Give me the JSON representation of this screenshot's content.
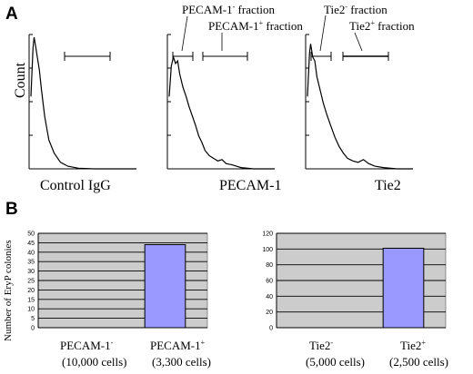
{
  "panels": {
    "a": "A",
    "b": "B"
  },
  "colors": {
    "plot_bg": "#cccccc",
    "bar_fill": "#9999ff",
    "line": "#000000"
  },
  "chart_data": [
    {
      "type": "line",
      "panel": "A",
      "ylabel": "Count",
      "xlabel": "Control IgG",
      "gates": [],
      "histogram": [
        [
          0,
          0.55
        ],
        [
          0.02,
          0.92
        ],
        [
          0.03,
          1.0
        ],
        [
          0.045,
          0.93
        ],
        [
          0.06,
          0.85
        ],
        [
          0.08,
          0.75
        ],
        [
          0.1,
          0.6
        ],
        [
          0.13,
          0.4
        ],
        [
          0.17,
          0.22
        ],
        [
          0.22,
          0.12
        ],
        [
          0.28,
          0.05
        ],
        [
          0.35,
          0.02
        ],
        [
          0.45,
          0.005
        ],
        [
          0.6,
          0
        ],
        [
          1,
          0
        ]
      ],
      "marker_bar": "unlabeled gate"
    },
    {
      "type": "line",
      "panel": "A",
      "xlabel": "PECAM-1",
      "gates": [
        {
          "base": "PECAM-1",
          "sup": "-",
          "suffix": " fraction"
        },
        {
          "base": "PECAM-1",
          "sup": "+",
          "suffix": " fraction"
        }
      ],
      "histogram": [
        [
          0,
          0.55
        ],
        [
          0.02,
          0.78
        ],
        [
          0.04,
          0.85
        ],
        [
          0.06,
          0.8
        ],
        [
          0.08,
          0.82
        ],
        [
          0.1,
          0.72
        ],
        [
          0.13,
          0.62
        ],
        [
          0.16,
          0.55
        ],
        [
          0.19,
          0.47
        ],
        [
          0.22,
          0.4
        ],
        [
          0.25,
          0.33
        ],
        [
          0.28,
          0.25
        ],
        [
          0.31,
          0.2
        ],
        [
          0.34,
          0.14
        ],
        [
          0.38,
          0.1
        ],
        [
          0.42,
          0.08
        ],
        [
          0.46,
          0.06
        ],
        [
          0.5,
          0.07
        ],
        [
          0.54,
          0.04
        ],
        [
          0.6,
          0.03
        ],
        [
          0.68,
          0.01
        ],
        [
          0.8,
          0
        ],
        [
          1,
          0
        ]
      ]
    },
    {
      "type": "line",
      "panel": "A",
      "xlabel": "Tie2",
      "gates": [
        {
          "base": "Tie2",
          "sup": "-",
          "suffix": " fraction"
        },
        {
          "base": "Tie2",
          "sup": "+",
          "suffix": " fraction"
        }
      ],
      "histogram": [
        [
          0,
          0.55
        ],
        [
          0.02,
          0.88
        ],
        [
          0.03,
          0.95
        ],
        [
          0.05,
          0.85
        ],
        [
          0.07,
          0.82
        ],
        [
          0.09,
          0.7
        ],
        [
          0.12,
          0.6
        ],
        [
          0.15,
          0.5
        ],
        [
          0.18,
          0.42
        ],
        [
          0.22,
          0.33
        ],
        [
          0.26,
          0.24
        ],
        [
          0.3,
          0.17
        ],
        [
          0.34,
          0.12
        ],
        [
          0.38,
          0.08
        ],
        [
          0.43,
          0.06
        ],
        [
          0.48,
          0.05
        ],
        [
          0.53,
          0.07
        ],
        [
          0.58,
          0.04
        ],
        [
          0.64,
          0.02
        ],
        [
          0.72,
          0.01
        ],
        [
          0.85,
          0
        ],
        [
          1,
          0
        ]
      ]
    },
    {
      "type": "bar",
      "panel": "B",
      "ylabel": "Number of EryP colonies",
      "ylim": [
        0,
        50
      ],
      "yticks": [
        "0",
        "5",
        "10",
        "15",
        "20",
        "25",
        "30",
        "35",
        "40",
        "45",
        "50"
      ],
      "categories": [
        {
          "base": "PECAM-1",
          "sup": "-",
          "cells": "(10,000 cells)"
        },
        {
          "base": "PECAM-1",
          "sup": "+",
          "cells": "(3,300 cells)"
        }
      ],
      "values": [
        0,
        44
      ]
    },
    {
      "type": "bar",
      "panel": "B",
      "ylim": [
        0,
        120
      ],
      "yticks": [
        "0",
        "20",
        "40",
        "60",
        "80",
        "100",
        "120"
      ],
      "categories": [
        {
          "base": "Tie2",
          "sup": "-",
          "cells": "(5,000 cells)"
        },
        {
          "base": "Tie2",
          "sup": "+",
          "cells": "(2,500 cells)"
        }
      ],
      "values": [
        0,
        101
      ]
    }
  ]
}
